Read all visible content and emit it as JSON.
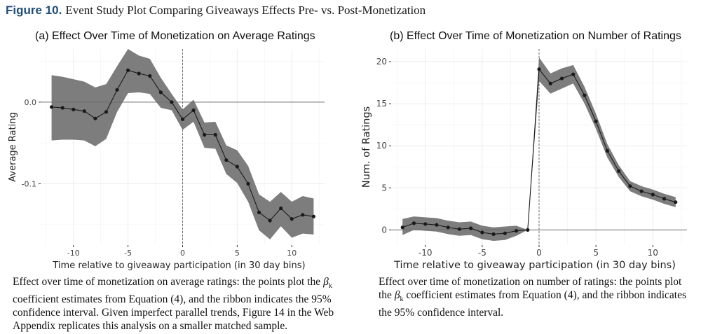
{
  "figure": {
    "label": "Figure 10.",
    "title": "Event Study Plot Comparing Giveaways Effects Pre- vs. Post-Monetization"
  },
  "chart_data": [
    {
      "type": "line",
      "title": "(a) Effect Over Time of Monetization on Average Ratings",
      "xlabel": "Time relative to giveaway participation (in 30 day bins)",
      "ylabel": "Average Rating",
      "xlim": [
        -13,
        13
      ],
      "ylim": [
        -0.175,
        0.065
      ],
      "x_ticks": [
        -10,
        -5,
        0,
        5,
        10
      ],
      "x_tick_labels": [
        "-10",
        "-5",
        "0",
        "5",
        "10"
      ],
      "y_ticks": [
        0.0,
        -0.1
      ],
      "y_tick_labels": [
        "0.0",
        "-0.1"
      ],
      "x": [
        -12,
        -11,
        -10,
        -9,
        -8,
        -7,
        -6,
        -5,
        -4,
        -3,
        -2,
        -1,
        0,
        1,
        2,
        3,
        4,
        5,
        6,
        7,
        8,
        9,
        10,
        11,
        12
      ],
      "values": [
        -0.006,
        -0.007,
        -0.009,
        -0.011,
        -0.02,
        -0.012,
        0.015,
        0.039,
        0.035,
        0.032,
        0.012,
        0.0,
        -0.021,
        -0.01,
        -0.04,
        -0.04,
        -0.071,
        -0.079,
        -0.1,
        -0.135,
        -0.145,
        -0.13,
        -0.143,
        -0.138,
        -0.14
      ],
      "ci_upper": [
        0.033,
        0.031,
        0.028,
        0.025,
        0.018,
        0.022,
        0.044,
        0.065,
        0.057,
        0.053,
        0.03,
        0.01,
        -0.009,
        0.003,
        -0.025,
        -0.024,
        -0.053,
        -0.059,
        -0.078,
        -0.113,
        -0.122,
        -0.11,
        -0.122,
        -0.115,
        -0.118
      ],
      "ci_lower": [
        -0.047,
        -0.046,
        -0.046,
        -0.047,
        -0.054,
        -0.045,
        -0.012,
        0.011,
        0.012,
        0.01,
        -0.007,
        -0.01,
        -0.034,
        -0.024,
        -0.056,
        -0.057,
        -0.088,
        -0.099,
        -0.122,
        -0.157,
        -0.168,
        -0.152,
        -0.166,
        -0.161,
        -0.162
      ],
      "reference_lines": {
        "hline": 0,
        "vline": 0
      },
      "colors": {
        "ribbon": "#7d7d7d",
        "line": "#1a1a1a",
        "grid": "#ebebeb",
        "refline": "#6e6e6e"
      }
    },
    {
      "type": "line",
      "title": "(b) Effect Over Time of Monetization on Number of Ratings",
      "xlabel": "Time relative to giveaway participation (in 30 day bins)",
      "ylabel": "Num. of Ratings",
      "xlim": [
        -13,
        13
      ],
      "ylim": [
        -1.8,
        21.5
      ],
      "x_ticks": [
        -10,
        -5,
        0,
        5,
        10
      ],
      "x_tick_labels": [
        "-10",
        "-5",
        "0",
        "5",
        "10"
      ],
      "y_ticks": [
        0,
        5,
        10,
        15,
        20
      ],
      "y_tick_labels": [
        "0",
        "5",
        "10",
        "15",
        "20"
      ],
      "x": [
        -12,
        -11,
        -10,
        -9,
        -8,
        -7,
        -6,
        -5,
        -4,
        -3,
        -2,
        -1,
        0,
        1,
        2,
        3,
        4,
        5,
        6,
        7,
        8,
        9,
        10,
        11,
        12
      ],
      "values": [
        0.3,
        0.8,
        0.7,
        0.6,
        0.3,
        0.1,
        0.2,
        -0.3,
        -0.5,
        -0.4,
        -0.1,
        0.0,
        19.1,
        17.4,
        18.0,
        18.5,
        16.0,
        12.9,
        9.4,
        7.0,
        5.2,
        4.6,
        4.2,
        3.7,
        3.3
      ],
      "ci_upper": [
        1.3,
        1.6,
        1.5,
        1.4,
        1.1,
        0.9,
        1.0,
        0.5,
        0.3,
        0.4,
        0.5,
        0.0,
        20.5,
        18.6,
        19.2,
        19.6,
        17.0,
        13.8,
        10.2,
        7.7,
        5.8,
        5.2,
        4.8,
        4.3,
        3.9
      ],
      "ci_lower": [
        -0.6,
        0.0,
        -0.1,
        -0.2,
        -0.5,
        -0.7,
        -0.6,
        -1.1,
        -1.3,
        -1.2,
        -0.7,
        0.0,
        17.7,
        16.2,
        16.8,
        17.4,
        15.0,
        12.0,
        8.6,
        6.3,
        4.6,
        4.0,
        3.6,
        3.1,
        2.7
      ],
      "reference_lines": {
        "hline": 0,
        "vline": 0
      },
      "colors": {
        "ribbon": "#7d7d7d",
        "line": "#1a1a1a",
        "grid": "#ebebeb",
        "refline": "#6e6e6e"
      }
    }
  ],
  "captions": {
    "a": {
      "part1": "Effect over time of monetization on average ratings: the points plot the ",
      "beta": "β",
      "sub": "k",
      "part2": " coefficient estimates from Equation (4), and the ribbon indicates the 95% confidence interval. Given imperfect parallel trends, Figure 14 in the Web Appendix replicates this analysis on a smaller matched sample."
    },
    "b": {
      "part1": "Effect over time of monetization on number of ratings: the points plot the ",
      "beta": "β",
      "sub": "k",
      "part2": " coefficient estimates from Equation (4), and the ribbon indicates the 95% confidence interval."
    }
  }
}
